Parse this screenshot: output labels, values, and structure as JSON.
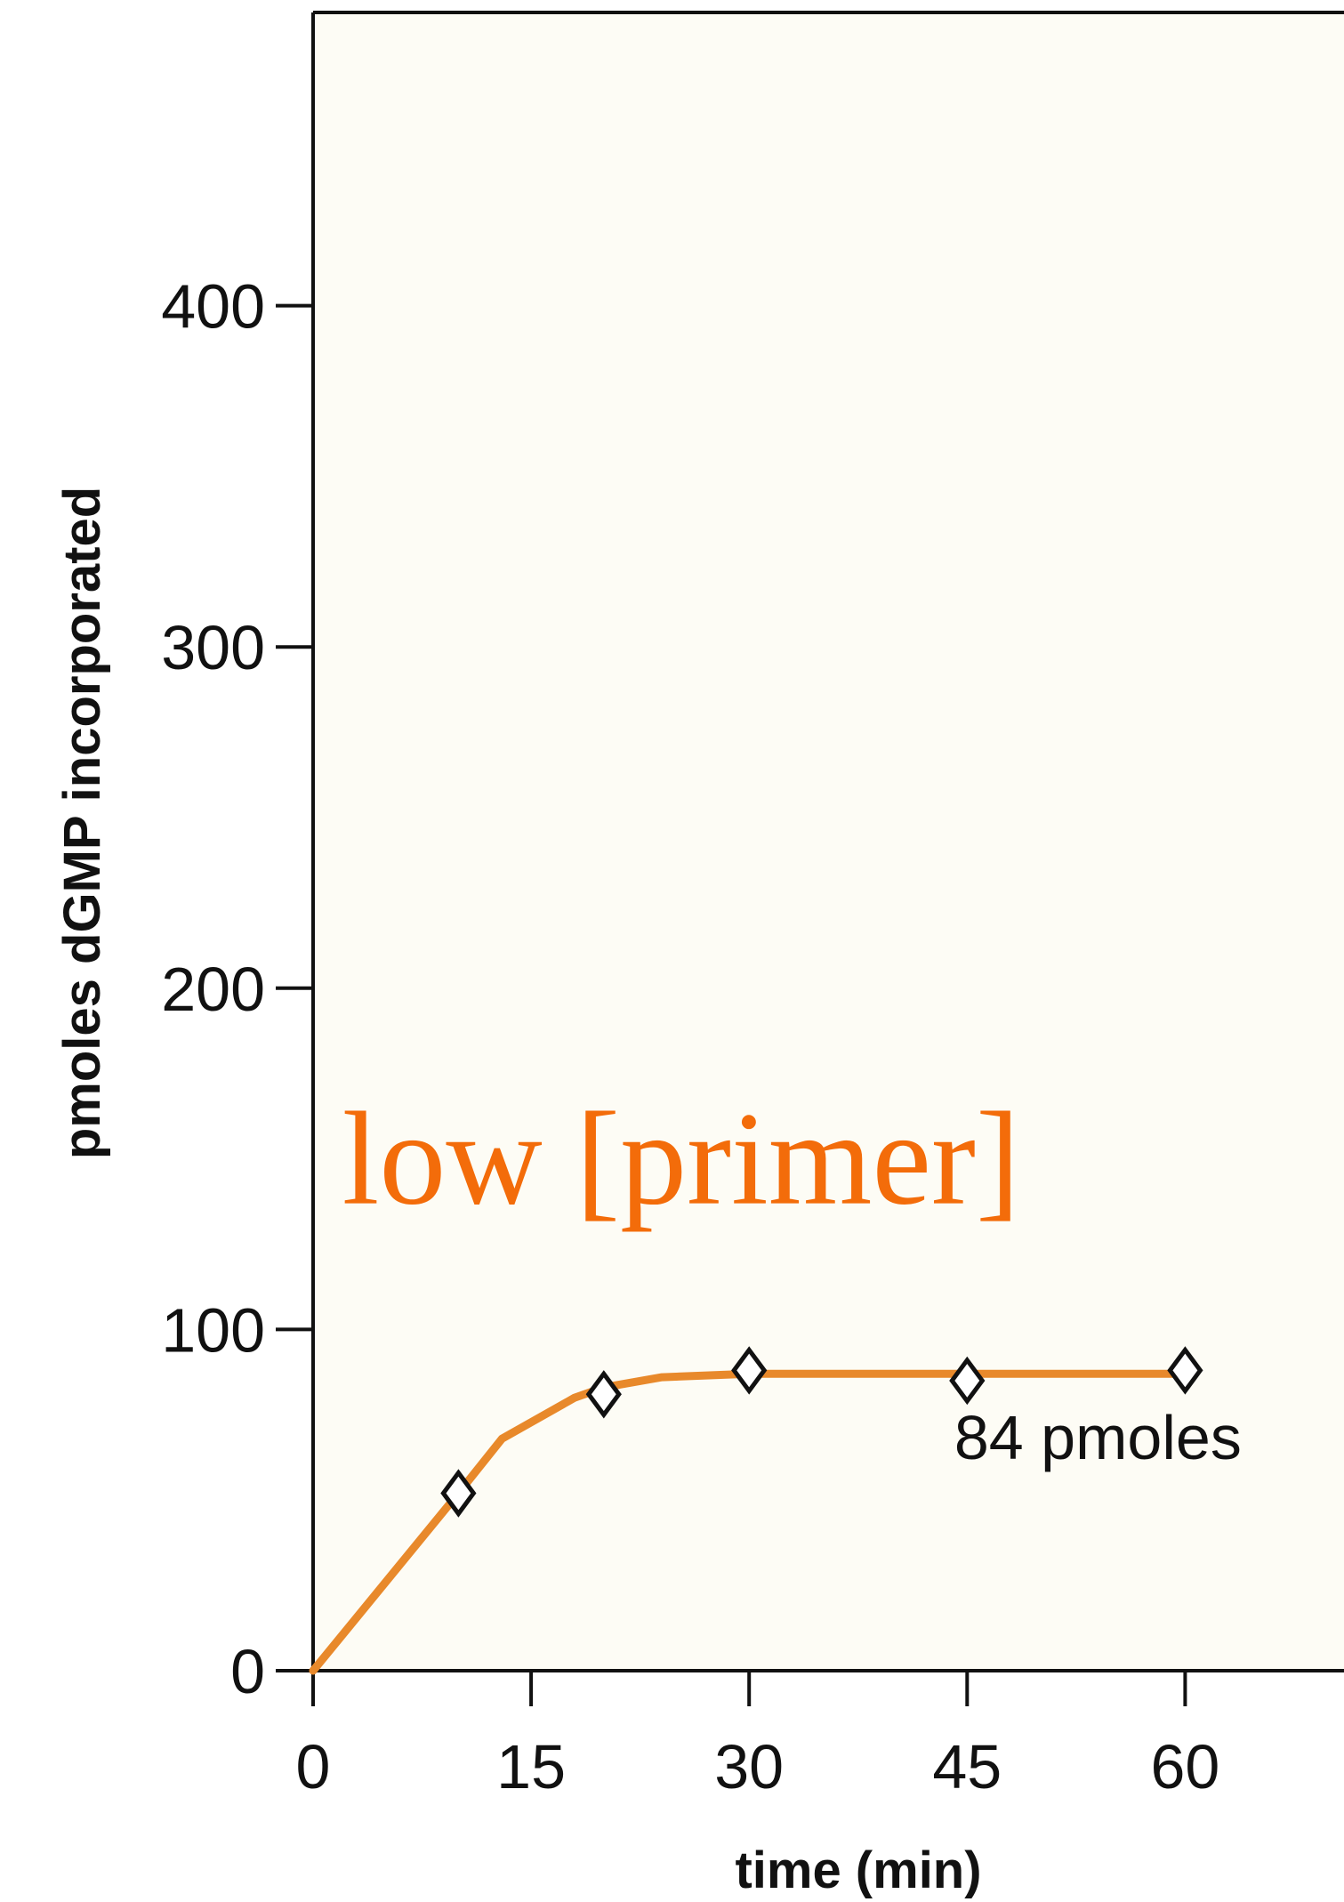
{
  "colors": {
    "plot_background": "#fdfcf5",
    "series": "#e8892b",
    "overlay_label": "#f36c0a",
    "axis": "#111111"
  },
  "chart_data": {
    "type": "line",
    "title": "",
    "xlabel": "time (min)",
    "ylabel": "pmoles dGMP incorporated",
    "xlim": [
      0,
      72
    ],
    "ylim": [
      0,
      480
    ],
    "x_ticks": [
      0,
      15,
      30,
      45,
      60
    ],
    "y_ticks": [
      0,
      100,
      200,
      300,
      400
    ],
    "grid": false,
    "legend": "none",
    "series": [
      {
        "line": {
          "x": [
            0,
            10,
            13,
            18,
            20,
            24,
            30,
            45,
            60
          ],
          "y": [
            0,
            52,
            68,
            80,
            83,
            86,
            87,
            87,
            87
          ]
        },
        "markers": {
          "x": [
            10,
            20,
            30,
            45,
            60
          ],
          "y": [
            52,
            81,
            88,
            85,
            88
          ],
          "shape": "open-diamond"
        }
      }
    ],
    "annotations": [
      {
        "text": "84 pmoles",
        "x": 54,
        "y": 62
      }
    ]
  },
  "overlay": {
    "label": "low [primer]",
    "x": 2,
    "y": 150
  }
}
